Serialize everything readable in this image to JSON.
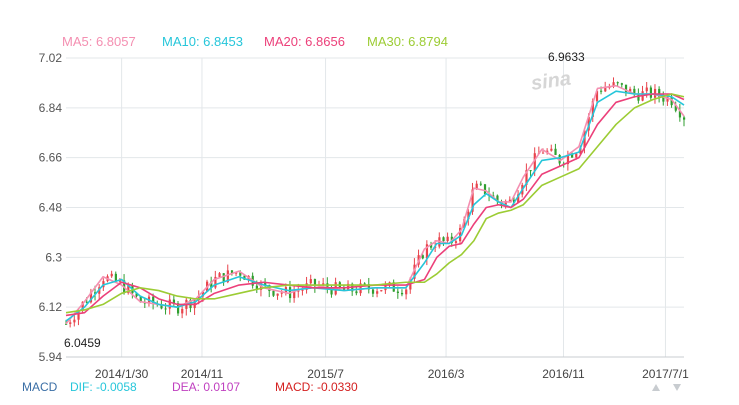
{
  "chart_data": {
    "type": "candlestick",
    "y_ticks": [
      7.02,
      6.84,
      6.66,
      6.48,
      6.3,
      6.12,
      5.94
    ],
    "ylim": [
      5.94,
      7.02
    ],
    "x_ticks": [
      "2014/1/30",
      "2014/11",
      "2015/7",
      "2016/3",
      "2016/11",
      "2017/7/1"
    ],
    "annotations": {
      "high": "6.9633",
      "low": "6.0459"
    },
    "legend": [
      {
        "label": "MA5: 6.8057",
        "color": "#f48fb1"
      },
      {
        "label": "MA10: 6.8453",
        "color": "#26c6da"
      },
      {
        "label": "MA20: 6.8656",
        "color": "#ec407a"
      },
      {
        "label": "MA30: 6.8794",
        "color": "#9ccc34"
      }
    ],
    "macd": {
      "title": "MACD",
      "dif": "DIF: -0.0058",
      "dea": "DEA: 0.0107",
      "macd": "MACD: -0.0330"
    },
    "watermark": "sina",
    "colors": {
      "up": "#e8434b",
      "down": "#2f9e2f",
      "grid": "#e3e7ea"
    },
    "series": [
      {
        "name": "MA5",
        "color": "#f48fb1",
        "x": [
          0,
          3,
          6,
          9,
          12,
          15,
          18,
          21,
          24,
          28,
          32,
          36,
          40,
          45,
          50,
          55,
          58,
          60,
          62,
          64,
          66,
          68,
          70,
          72,
          74,
          77,
          80,
          83,
          86,
          89,
          92,
          95,
          98,
          100
        ],
        "values": [
          6.06,
          6.14,
          6.23,
          6.2,
          6.14,
          6.13,
          6.12,
          6.15,
          6.22,
          6.25,
          6.19,
          6.17,
          6.2,
          6.18,
          6.19,
          6.19,
          6.33,
          6.36,
          6.35,
          6.4,
          6.55,
          6.54,
          6.5,
          6.5,
          6.59,
          6.69,
          6.65,
          6.7,
          6.91,
          6.92,
          6.89,
          6.89,
          6.87,
          6.81
        ]
      },
      {
        "name": "MA10",
        "color": "#26c6da",
        "x": [
          0,
          3,
          6,
          9,
          12,
          15,
          18,
          21,
          24,
          28,
          32,
          36,
          40,
          45,
          50,
          55,
          58,
          60,
          62,
          64,
          66,
          68,
          70,
          72,
          74,
          77,
          80,
          83,
          86,
          89,
          92,
          95,
          98,
          100
        ],
        "values": [
          6.07,
          6.12,
          6.2,
          6.22,
          6.16,
          6.13,
          6.12,
          6.14,
          6.2,
          6.23,
          6.2,
          6.18,
          6.19,
          6.18,
          6.19,
          6.19,
          6.28,
          6.35,
          6.35,
          6.38,
          6.49,
          6.53,
          6.5,
          6.48,
          6.55,
          6.65,
          6.66,
          6.68,
          6.86,
          6.9,
          6.89,
          6.89,
          6.88,
          6.85
        ]
      },
      {
        "name": "MA20",
        "color": "#ec407a",
        "x": [
          0,
          3,
          6,
          9,
          12,
          15,
          18,
          21,
          24,
          28,
          32,
          36,
          40,
          45,
          50,
          55,
          58,
          60,
          62,
          64,
          66,
          68,
          70,
          72,
          74,
          77,
          80,
          83,
          86,
          89,
          92,
          95,
          98,
          100
        ],
        "values": [
          6.09,
          6.1,
          6.16,
          6.21,
          6.19,
          6.15,
          6.13,
          6.13,
          6.17,
          6.2,
          6.21,
          6.2,
          6.19,
          6.19,
          6.2,
          6.2,
          6.22,
          6.3,
          6.34,
          6.35,
          6.42,
          6.48,
          6.49,
          6.48,
          6.51,
          6.6,
          6.63,
          6.66,
          6.78,
          6.86,
          6.88,
          6.89,
          6.89,
          6.87
        ]
      },
      {
        "name": "MA30",
        "color": "#9ccc34",
        "x": [
          0,
          3,
          6,
          9,
          12,
          15,
          18,
          21,
          24,
          28,
          32,
          36,
          40,
          45,
          50,
          55,
          58,
          60,
          62,
          64,
          66,
          68,
          70,
          72,
          74,
          77,
          80,
          83,
          86,
          89,
          92,
          95,
          98,
          100
        ],
        "values": [
          6.1,
          6.11,
          6.13,
          6.17,
          6.19,
          6.18,
          6.16,
          6.15,
          6.15,
          6.17,
          6.19,
          6.2,
          6.2,
          6.2,
          6.2,
          6.21,
          6.21,
          6.24,
          6.28,
          6.31,
          6.36,
          6.44,
          6.46,
          6.47,
          6.49,
          6.56,
          6.59,
          6.62,
          6.7,
          6.78,
          6.84,
          6.87,
          6.89,
          6.88
        ]
      }
    ]
  }
}
